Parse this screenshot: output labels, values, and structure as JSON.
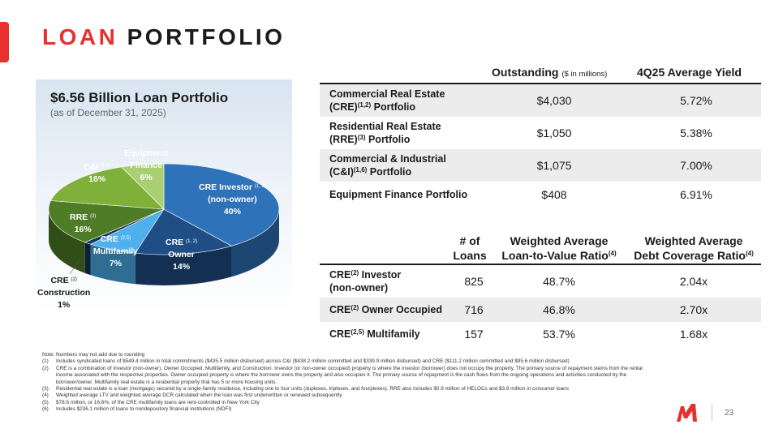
{
  "header": {
    "title_part1": "LOAN",
    "title_part2": "PORTFOLIO"
  },
  "pie": {
    "title": "$6.56 Billion Loan Portfolio",
    "subtitle": "(as of December 31, 2025)",
    "colors": {
      "cre_investor": "#2e72b9",
      "cre_owner": "#1f4e86",
      "cre_multifamily": "#4eb0ec",
      "cre_construction": "#12355e",
      "rre": "#4f7c26",
      "cni": "#7fb039",
      "equipment": "#a8cf72"
    },
    "labels": {
      "cre_investor": {
        "name": "CRE Investor",
        "sup": "(1, 2)",
        "line2": "(non-owner)",
        "pct": "40%"
      },
      "cre_owner": {
        "name": "CRE",
        "sup": "(1, 2)",
        "line2": "Owner",
        "pct": "14%"
      },
      "cre_multifamily": {
        "name": "CRE",
        "sup": "(2,5)",
        "line2": "Multifamily",
        "pct": "7%"
      },
      "cre_construction": {
        "name": "CRE",
        "sup": "(2)",
        "line2": "Construction",
        "pct": "1%"
      },
      "rre": {
        "name": "RRE",
        "sup": "(3)",
        "pct": "16%"
      },
      "cni": {
        "name": "C&I",
        "sup": "(1,6)",
        "pct": "16%"
      },
      "equipment": {
        "name": "Equipment",
        "line2": "Finance",
        "pct": "6%"
      }
    }
  },
  "chart_data": {
    "type": "pie",
    "title": "$6.56 Billion Loan Portfolio",
    "subtitle": "(as of December 31, 2025)",
    "categories": [
      "CRE Investor (non-owner)",
      "CRE Owner",
      "CRE Multifamily",
      "CRE Construction",
      "RRE",
      "C&I",
      "Equipment Finance"
    ],
    "values": [
      40,
      14,
      7,
      1,
      16,
      16,
      6
    ]
  },
  "table1": {
    "headers": {
      "outstanding": "Outstanding",
      "outstanding_unit": "($ in millions)",
      "yield": "4Q25 Average Yield"
    },
    "rows": [
      {
        "line1": "Commercial Real Estate",
        "line2": "(CRE)",
        "sup": "(1,2)",
        "line2_tail": " Portfolio",
        "outstanding": "$4,030",
        "yield": "5.72%"
      },
      {
        "line1": "Residential Real Estate",
        "line2": "(RRE)",
        "sup": "(3)",
        "line2_tail": " Portfolio",
        "outstanding": "$1,050",
        "yield": "5.38%"
      },
      {
        "line1": "Commercial & Industrial",
        "line2": "(C&I)",
        "sup": "(1,6)",
        "line2_tail": " Portfolio",
        "outstanding": "$1,075",
        "yield": "7.00%"
      },
      {
        "line1": "Equipment Finance Portfolio",
        "outstanding": "$408",
        "yield": "6.91%"
      }
    ]
  },
  "table2": {
    "headers": {
      "loans_l1": "# of",
      "loans_l2": "Loans",
      "ltv_l1": "Weighted Average",
      "ltv_l2": "Loan-to-Value Ratio",
      "ltv_sup": "(4)",
      "dcr_l1": "Weighted Average",
      "dcr_l2": "Debt Coverage Ratio",
      "dcr_sup": "(4)"
    },
    "rows": [
      {
        "pre": "CRE",
        "sup": "(2)",
        "post": " Investor",
        "line2": "(non-owner)",
        "loans": "825",
        "ltv": "48.7%",
        "dcr": "2.04x"
      },
      {
        "pre": "CRE",
        "sup": "(2)",
        "post": " Owner Occupied",
        "loans": "716",
        "ltv": "46.8%",
        "dcr": "2.70x"
      },
      {
        "pre": "CRE",
        "sup": "(2,5)",
        "post": " Multifamily",
        "loans": "157",
        "ltv": "53.7%",
        "dcr": "1.68x"
      }
    ]
  },
  "notes": {
    "intro": "Note: Numbers may not add due to rounding",
    "items": [
      {
        "num": "(1)",
        "text": "Includes syndicated loans of $549.4 million in total commitments ($435.5 million disbursed) across C&I ($438.2 million committed and $339.9 million disbursed) and CRE ($111.2 million committed and $95.6 million disbursed)"
      },
      {
        "num": "(2)",
        "text": "CRE is a combination of Investor (non-owner), Owner Occupied, Multifamily, and Construction. Investor (or non-owner occupied) property is where the investor (borrower) does not occupy the property. The primary source of repayment stems from the rental income associated with the respective properties. Owner occupied property is where the borrower owns the property and also occupies it. The primary source of repayment is the cash flows from the ongoing operations and activities conducted by the borrower/owner. Multifamily real estate is a residential property that has 5 or more housing units."
      },
      {
        "num": "(3)",
        "text": "Residential real estate is a loan (mortgage) secured by a single-family residence, including one to four units (duplexes, triplexes, and fourplexes). RRE also includes $0.9 million of HELOCs and $3.8 million in consumer loans"
      },
      {
        "num": "(4)",
        "text": "Weighted average LTV and weighted average DCR calculated when the loan was first underwritten or renewed subsequently"
      },
      {
        "num": "(5)",
        "text": "$78.6 million, or 16.6%, of the CRE multifamily loans are rent-controlled in New York City"
      },
      {
        "num": "(6)",
        "text": "Includes $236.1 million of loans to nondepository financial institutions (NDFI)"
      }
    ]
  },
  "footer": {
    "page_number": "23",
    "logo_color": "#e8312f"
  }
}
